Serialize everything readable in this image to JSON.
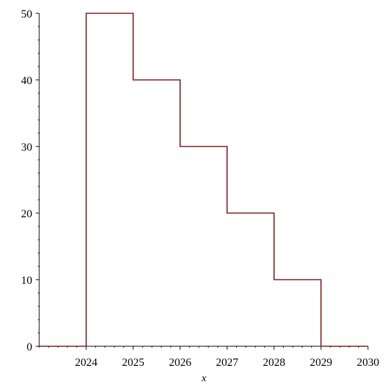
{
  "chart_data": {
    "type": "line",
    "subtype": "step",
    "title": "",
    "xlabel": "x",
    "ylabel": "",
    "xlim": [
      2023,
      2030
    ],
    "ylim": [
      0,
      50
    ],
    "x_ticks": [
      2024,
      2025,
      2026,
      2027,
      2028,
      2029,
      2030
    ],
    "x_tick_labels": [
      "2024",
      "2025",
      "2026",
      "2027",
      "2028",
      "2029",
      "2030"
    ],
    "y_ticks": [
      0,
      10,
      20,
      30,
      40,
      50
    ],
    "y_tick_labels": [
      "0",
      "10",
      "20",
      "30",
      "40",
      "50"
    ],
    "grid": false,
    "legend": "none",
    "series": [
      {
        "color": "#7a1e1e",
        "points": [
          {
            "x": 2023,
            "y": 0
          },
          {
            "x": 2024,
            "y": 0
          },
          {
            "x": 2024,
            "y": 50
          },
          {
            "x": 2025,
            "y": 50
          },
          {
            "x": 2025,
            "y": 40
          },
          {
            "x": 2026,
            "y": 40
          },
          {
            "x": 2026,
            "y": 30
          },
          {
            "x": 2027,
            "y": 30
          },
          {
            "x": 2027,
            "y": 20
          },
          {
            "x": 2028,
            "y": 20
          },
          {
            "x": 2028,
            "y": 10
          },
          {
            "x": 2029,
            "y": 10
          },
          {
            "x": 2029,
            "y": 0
          },
          {
            "x": 2030,
            "y": 0
          }
        ]
      }
    ],
    "axis_color": "#000000"
  }
}
